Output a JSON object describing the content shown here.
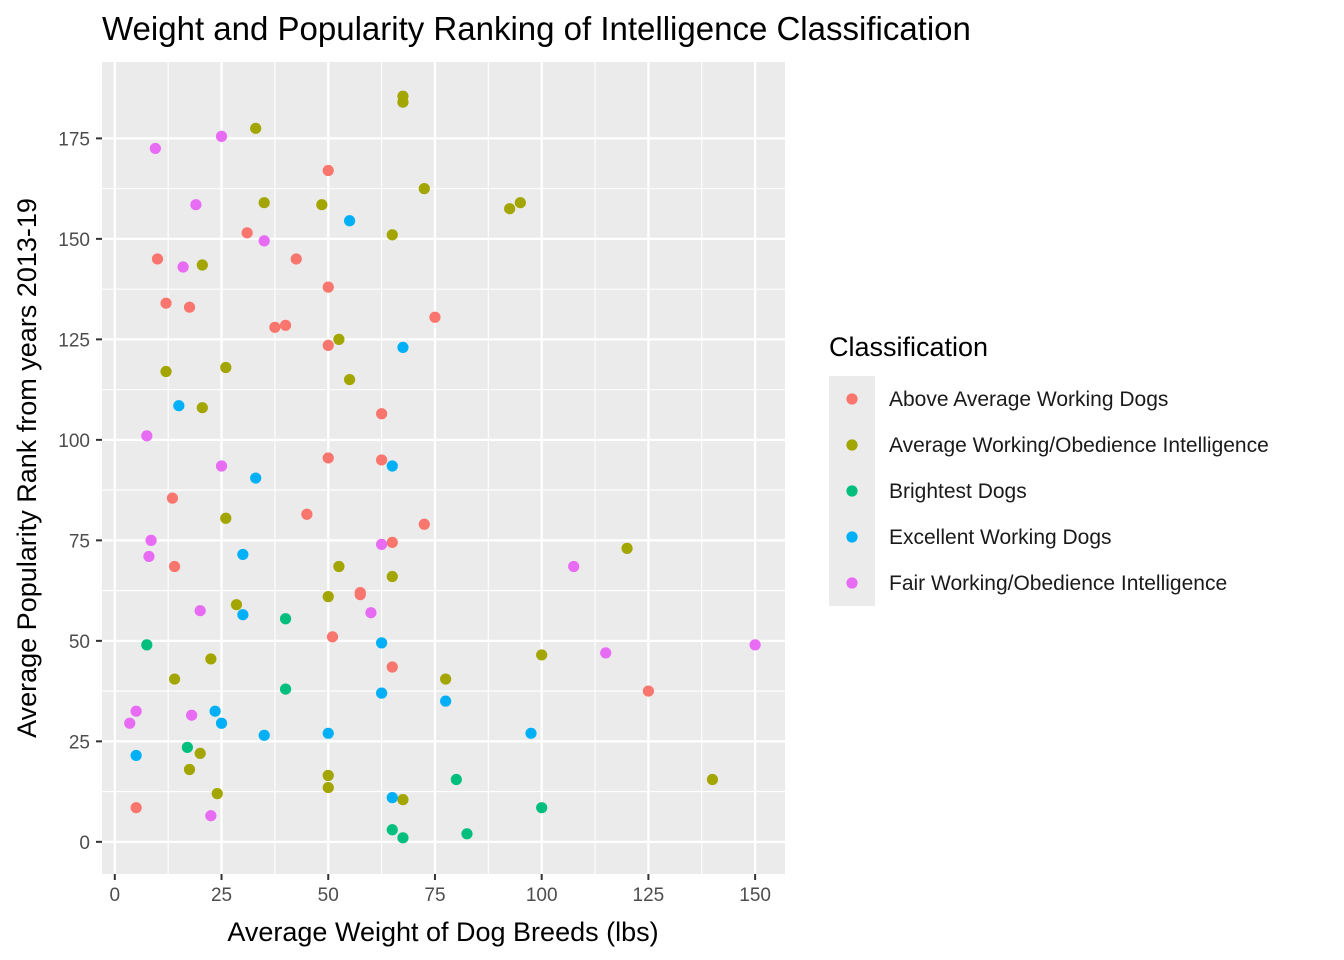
{
  "chart_data": {
    "type": "scatter",
    "title": "Weight and Popularity Ranking of Intelligence Classification",
    "xlabel": "Average Weight of Dog Breeds (lbs)",
    "ylabel": "Average Popularity Rank from years 2013-19",
    "xlim": [
      -3,
      157
    ],
    "ylim": [
      -8,
      194
    ],
    "x_ticks": [
      0,
      25,
      50,
      75,
      100,
      125,
      150
    ],
    "y_ticks": [
      0,
      25,
      50,
      75,
      100,
      125,
      150,
      175
    ],
    "grid": true,
    "legend": {
      "title": "Classification",
      "position": "right"
    },
    "series": [
      {
        "name": "Above Average Working Dogs",
        "color": "#F8766D",
        "points": [
          [
            50,
            167
          ],
          [
            31,
            151.5
          ],
          [
            10,
            145
          ],
          [
            42.5,
            145
          ],
          [
            50,
            138
          ],
          [
            12,
            134
          ],
          [
            17.5,
            133
          ],
          [
            75,
            130.5
          ],
          [
            40,
            128.5
          ],
          [
            37.5,
            128
          ],
          [
            50,
            123.5
          ],
          [
            62.5,
            106.5
          ],
          [
            50,
            95.5
          ],
          [
            62.5,
            95
          ],
          [
            13.5,
            85.5
          ],
          [
            45,
            81.5
          ],
          [
            72.5,
            79
          ],
          [
            65,
            74.5
          ],
          [
            14,
            68.5
          ],
          [
            57.5,
            62
          ],
          [
            57.5,
            61.5
          ],
          [
            51,
            51
          ],
          [
            65,
            43.5
          ],
          [
            125,
            37.5
          ],
          [
            5,
            8.5
          ]
        ]
      },
      {
        "name": "Average Working/Obedience Intelligence",
        "color": "#A3A500",
        "points": [
          [
            67.5,
            185.5
          ],
          [
            67.5,
            184
          ],
          [
            33,
            177.5
          ],
          [
            72.5,
            162.5
          ],
          [
            35,
            159
          ],
          [
            48.5,
            158.5
          ],
          [
            95,
            159
          ],
          [
            92.5,
            157.5
          ],
          [
            65,
            151
          ],
          [
            20.5,
            143.5
          ],
          [
            52.5,
            125
          ],
          [
            12,
            117
          ],
          [
            26,
            118
          ],
          [
            55,
            115
          ],
          [
            20.5,
            108
          ],
          [
            26,
            80.5
          ],
          [
            120,
            73
          ],
          [
            52.5,
            68.5
          ],
          [
            65,
            66
          ],
          [
            50,
            61
          ],
          [
            28.5,
            59
          ],
          [
            100,
            46.5
          ],
          [
            22.5,
            45.5
          ],
          [
            14,
            40.5
          ],
          [
            77.5,
            40.5
          ],
          [
            20,
            22
          ],
          [
            17.5,
            18
          ],
          [
            50,
            16.5
          ],
          [
            140,
            15.5
          ],
          [
            50,
            13.5
          ],
          [
            24,
            12
          ],
          [
            67.5,
            10.5
          ]
        ]
      },
      {
        "name": "Brightest Dogs",
        "color": "#00BF7D",
        "points": [
          [
            40,
            55.5
          ],
          [
            7.5,
            49
          ],
          [
            40,
            38
          ],
          [
            17,
            23.5
          ],
          [
            80,
            15.5
          ],
          [
            100,
            8.5
          ],
          [
            65,
            3
          ],
          [
            67.5,
            1
          ],
          [
            82.5,
            2
          ]
        ]
      },
      {
        "name": "Excellent Working Dogs",
        "color": "#00B0F6",
        "points": [
          [
            55,
            154.5
          ],
          [
            67.5,
            123
          ],
          [
            15,
            108.5
          ],
          [
            65,
            93.5
          ],
          [
            33,
            90.5
          ],
          [
            30,
            71.5
          ],
          [
            30,
            56.5
          ],
          [
            62.5,
            49.5
          ],
          [
            62.5,
            37
          ],
          [
            77.5,
            35
          ],
          [
            23.5,
            32.5
          ],
          [
            25,
            29.5
          ],
          [
            97.5,
            27
          ],
          [
            50,
            27
          ],
          [
            35,
            26.5
          ],
          [
            5,
            21.5
          ],
          [
            65,
            11
          ]
        ]
      },
      {
        "name": "Fair Working/Obedience Intelligence",
        "color": "#E76BF3",
        "points": [
          [
            25,
            175.5
          ],
          [
            9.5,
            172.5
          ],
          [
            19,
            158.5
          ],
          [
            35,
            149.5
          ],
          [
            16,
            143
          ],
          [
            7.5,
            101
          ],
          [
            25,
            93.5
          ],
          [
            8.5,
            75
          ],
          [
            62.5,
            74
          ],
          [
            8,
            71
          ],
          [
            107.5,
            68.5
          ],
          [
            20,
            57.5
          ],
          [
            60,
            57
          ],
          [
            150,
            49
          ],
          [
            115,
            47
          ],
          [
            5,
            32.5
          ],
          [
            18,
            31.5
          ],
          [
            3.5,
            29.5
          ],
          [
            22.5,
            6.5
          ]
        ]
      }
    ]
  }
}
